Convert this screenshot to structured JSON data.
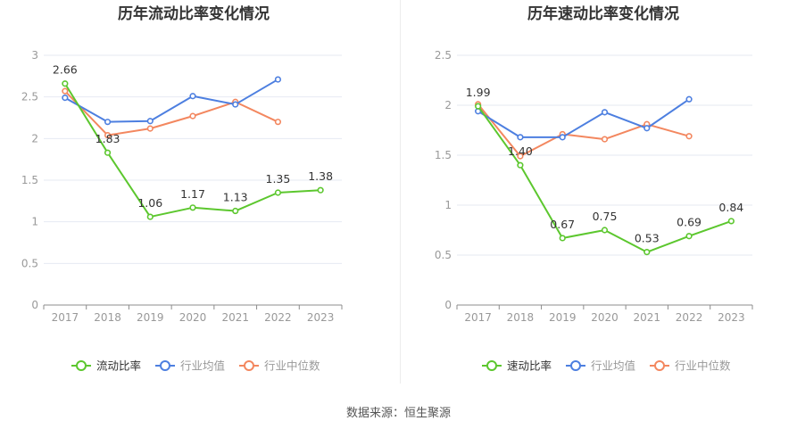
{
  "colors": {
    "primary": "#5cc72e",
    "avg": "#4d7fe0",
    "median": "#f3875f",
    "grid": "#e6e9f2",
    "axis": "#999999",
    "label": "#333333"
  },
  "chart_data": [
    {
      "type": "line",
      "title": "历年流动比率变化情况",
      "categories": [
        "2017",
        "2018",
        "2019",
        "2020",
        "2021",
        "2022",
        "2023"
      ],
      "ylim": [
        0,
        3
      ],
      "yticks": [
        "0",
        "0.5",
        "1",
        "1.5",
        "2",
        "2.5",
        "3"
      ],
      "ytick_values": [
        0,
        0.5,
        1,
        1.5,
        2,
        2.5,
        3
      ],
      "grid": true,
      "legend_position": "bottom",
      "series": [
        {
          "name": "流动比率",
          "color_key": "primary",
          "labeled": true,
          "values": [
            2.66,
            1.83,
            1.06,
            1.17,
            1.13,
            1.35,
            1.38
          ],
          "labels": [
            "2.66",
            "1.83",
            "1.06",
            "1.17",
            "1.13",
            "1.35",
            "1.38"
          ]
        },
        {
          "name": "行业均值",
          "color_key": "avg",
          "labeled": false,
          "values": [
            2.49,
            2.2,
            2.21,
            2.51,
            2.41,
            2.71,
            null
          ]
        },
        {
          "name": "行业中位数",
          "color_key": "median",
          "labeled": false,
          "values": [
            2.57,
            2.04,
            2.12,
            2.27,
            2.44,
            2.2,
            null
          ]
        }
      ]
    },
    {
      "type": "line",
      "title": "历年速动比率变化情况",
      "categories": [
        "2017",
        "2018",
        "2019",
        "2020",
        "2021",
        "2022",
        "2023"
      ],
      "ylim": [
        0,
        2.5
      ],
      "yticks": [
        "0",
        "0.5",
        "1",
        "1.5",
        "2",
        "2.5"
      ],
      "ytick_values": [
        0,
        0.5,
        1,
        1.5,
        2,
        2.5
      ],
      "grid": true,
      "legend_position": "bottom",
      "series": [
        {
          "name": "速动比率",
          "color_key": "primary",
          "labeled": true,
          "values": [
            1.99,
            1.4,
            0.67,
            0.75,
            0.53,
            0.69,
            0.84
          ],
          "labels": [
            "1.99",
            "1.40",
            "0.67",
            "0.75",
            "0.53",
            "0.69",
            "0.84"
          ]
        },
        {
          "name": "行业均值",
          "color_key": "avg",
          "labeled": false,
          "values": [
            1.94,
            1.68,
            1.68,
            1.93,
            1.77,
            2.06,
            null
          ]
        },
        {
          "name": "行业中位数",
          "color_key": "median",
          "labeled": false,
          "values": [
            2.01,
            1.49,
            1.71,
            1.66,
            1.81,
            1.69,
            null
          ]
        }
      ]
    }
  ],
  "footer": {
    "source": "数据来源：恒生聚源"
  }
}
